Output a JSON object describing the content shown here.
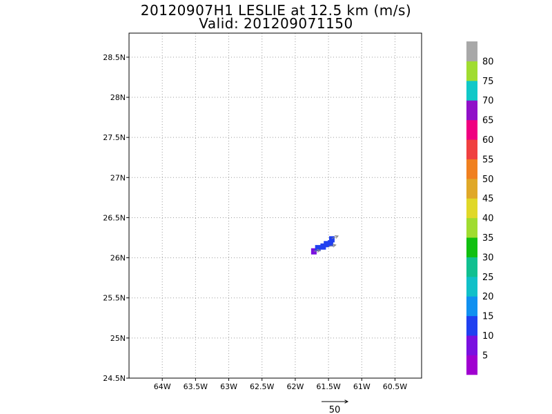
{
  "title": "20120907H1 LESLIE at 12.5 km (m/s)",
  "subtitle": "Valid: 201209071150",
  "colors": {
    "frame": "#000000",
    "grid": "#9a9a9a",
    "vector": "#888888"
  },
  "chart_data": {
    "type": "heatmap",
    "x_axis": {
      "range": [
        -64.5,
        -60.1
      ],
      "ticks": [
        -64,
        -63.5,
        -63,
        -62.5,
        -62,
        -61.5,
        -61,
        -60.5
      ],
      "tick_labels": [
        "64W",
        "63.5W",
        "63W",
        "62.5W",
        "62W",
        "61.5W",
        "61W",
        "60.5W"
      ]
    },
    "y_axis": {
      "range": [
        24.5,
        28.8
      ],
      "ticks": [
        24.5,
        25,
        25.5,
        26,
        26.5,
        27,
        27.5,
        28,
        28.5
      ],
      "tick_labels": [
        "24.5N",
        "25N",
        "25.5N",
        "26N",
        "26.5N",
        "27N",
        "27.5N",
        "28N",
        "28.5N"
      ]
    },
    "grid": true,
    "cells": [
      {
        "lon": -61.72,
        "lat": 26.08,
        "value": 8
      },
      {
        "lon": -61.66,
        "lat": 26.12,
        "value": 12
      },
      {
        "lon": -61.58,
        "lat": 26.14,
        "value": 13
      },
      {
        "lon": -61.53,
        "lat": 26.17,
        "value": 13
      },
      {
        "lon": -61.47,
        "lat": 26.18,
        "value": 13
      },
      {
        "lon": -61.45,
        "lat": 26.23,
        "value": 13
      }
    ],
    "vectors": [
      {
        "lon": -61.72,
        "lat": 26.08,
        "u": 12,
        "v": 2
      },
      {
        "lon": -61.5,
        "lat": 26.14,
        "u": 14,
        "v": 3
      },
      {
        "lon": -61.45,
        "lat": 26.24,
        "u": 12,
        "v": 5
      }
    ],
    "reference_vector": {
      "label": "50",
      "magnitude": 50
    },
    "colorbar": {
      "labels": [
        "5",
        "10",
        "15",
        "20",
        "25",
        "30",
        "35",
        "40",
        "45",
        "50",
        "55",
        "60",
        "65",
        "70",
        "75",
        "80"
      ],
      "colors": [
        "#a000d0",
        "#7a10e0",
        "#2040f0",
        "#1090f0",
        "#10c0c8",
        "#10c090",
        "#10c010",
        "#a0dc30",
        "#e0d828",
        "#e0a828",
        "#f08020",
        "#f04040",
        "#f00080",
        "#9010c8",
        "#10c8c8",
        "#a0dc30",
        "#a8a8a8"
      ]
    }
  }
}
